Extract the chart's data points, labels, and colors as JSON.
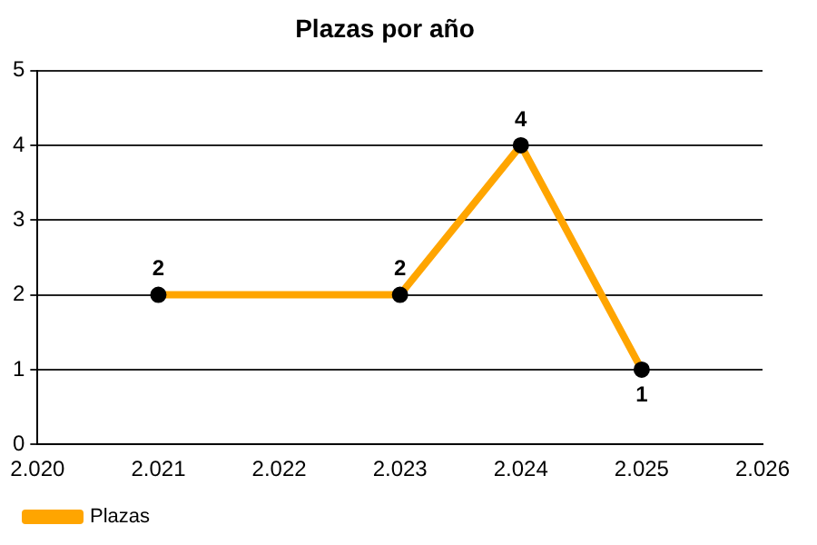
{
  "chart_data": {
    "type": "line",
    "title": "Plazas por año",
    "x": [
      2021,
      2023,
      2024,
      2025
    ],
    "series": [
      {
        "name": "Plazas",
        "color": "#ffa500",
        "values": [
          2,
          2,
          4,
          1
        ]
      }
    ],
    "xlim": [
      2020,
      2026
    ],
    "xticks": [
      {
        "value": 2020,
        "label": "2.020"
      },
      {
        "value": 2021,
        "label": "2.021"
      },
      {
        "value": 2022,
        "label": "2.022"
      },
      {
        "value": 2023,
        "label": "2.023"
      },
      {
        "value": 2024,
        "label": "2.024"
      },
      {
        "value": 2025,
        "label": "2.025"
      },
      {
        "value": 2026,
        "label": "2.026"
      }
    ],
    "ylim": [
      0,
      5
    ],
    "yticks": [
      0,
      1,
      2,
      3,
      4,
      5
    ],
    "grid": "y",
    "legend": "bottom left",
    "marker": "circle",
    "line_style": "solid",
    "data_labels": true
  }
}
